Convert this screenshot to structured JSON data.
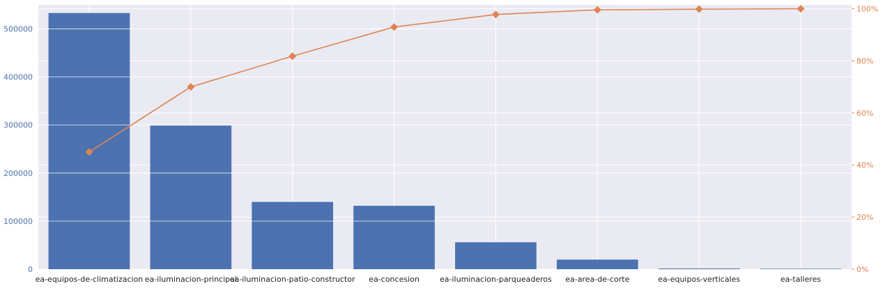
{
  "chart_data": {
    "type": "bar",
    "categories": [
      "ea-equipos-de-climatizacion",
      "ea-iluminacion-principal",
      "ea-iluminacion-patio-constructor",
      "ea-concesion",
      "ea-iluminacion-parqueaderos",
      "ea-area-de-corte",
      "ea-equipos-verticales",
      "ea-talleres"
    ],
    "series": [
      {
        "type": "bar",
        "axis": "left",
        "color": "#4c72b0",
        "values": [
          533000,
          299000,
          140000,
          132000,
          56000,
          20000,
          1500,
          1000
        ]
      },
      {
        "type": "line",
        "axis": "right",
        "marker": "diamond",
        "color": "#dd8452",
        "values": [
          45.0,
          70.0,
          81.8,
          93.0,
          97.8,
          99.6,
          99.85,
          100.0
        ]
      }
    ],
    "y_left": {
      "ylim": [
        0,
        550000
      ],
      "ticks": [
        0,
        100000,
        200000,
        300000,
        400000,
        500000
      ],
      "tick_labels": [
        "0",
        "100000",
        "200000",
        "300000",
        "400000",
        "500000"
      ],
      "color": "#4c72b0"
    },
    "y_right": {
      "ylim": [
        0,
        101.5
      ],
      "ticks": [
        0,
        20,
        40,
        60,
        80,
        100
      ],
      "tick_labels": [
        "0%",
        "20%",
        "40%",
        "60%",
        "80%",
        "100%"
      ],
      "color": "#dd8452"
    },
    "grid": true,
    "background": "#eaeaf2",
    "title": "",
    "xlabel": "",
    "ylabel": ""
  }
}
